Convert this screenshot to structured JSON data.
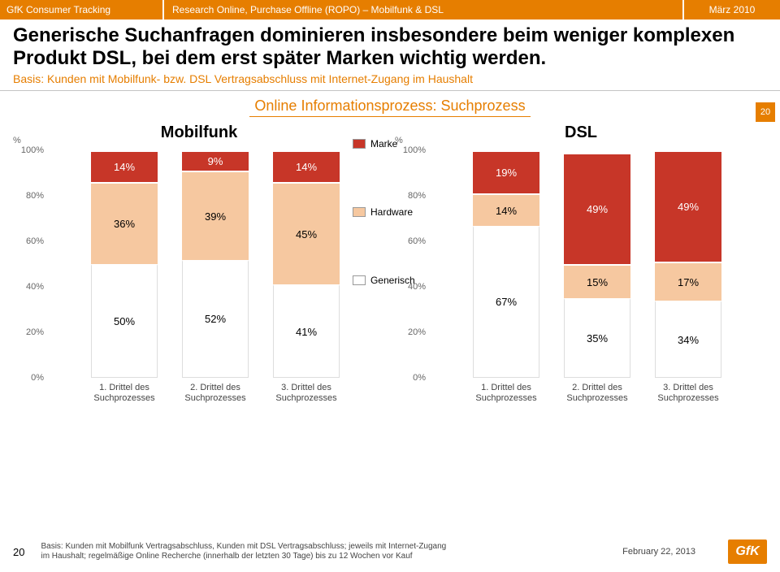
{
  "header": {
    "left": "GfK Consumer Tracking",
    "mid": "Research Online, Purchase Offline (ROPO) – Mobilfunk & DSL",
    "right": "März 2010"
  },
  "headline": "Generische Suchanfragen dominieren insbesondere beim weniger komplexen Produkt DSL, bei dem erst später Marken wichtig werden.",
  "subhead": "Basis: Kunden mit Mobilfunk- bzw. DSL Vertragsabschluss mit Internet-Zugang im Haushalt",
  "section_title": "Online Informationsprozess: Suchprozess",
  "pagenum_top": "20",
  "legend": {
    "items": [
      {
        "label": "Marke",
        "color": "#c73628"
      },
      {
        "label": "Hardware",
        "color": "#f6c8a0"
      },
      {
        "label": "Generisch",
        "color": "#ffffff"
      }
    ]
  },
  "colors": {
    "marke": "#c73628",
    "hardware": "#f6c8a0",
    "generisch": "#ffffff",
    "bar_border": "#ffffff",
    "text_on_dark": "#ffffff",
    "text_on_light": "#000000"
  },
  "charts": {
    "mobilfunk": {
      "title": "Mobilfunk",
      "ylabel": "%",
      "yticks": [
        "0%",
        "20%",
        "40%",
        "60%",
        "80%",
        "100%"
      ],
      "categories": [
        "1. Drittel des Suchprozesses",
        "2. Drittel des Suchprozesses",
        "3. Drittel des Suchprozesses"
      ],
      "series": [
        {
          "name": "Generisch",
          "values": [
            50,
            52,
            41
          ]
        },
        {
          "name": "Hardware",
          "values": [
            36,
            39,
            45
          ]
        },
        {
          "name": "Marke",
          "values": [
            14,
            9,
            14
          ]
        }
      ]
    },
    "dsl": {
      "title": "DSL",
      "ylabel": "%",
      "yticks": [
        "0%",
        "20%",
        "40%",
        "60%",
        "80%",
        "100%"
      ],
      "categories": [
        "1. Drittel des Suchprozesses",
        "2. Drittel des Suchprozesses",
        "3. Drittel des Suchprozesses"
      ],
      "series": [
        {
          "name": "Generisch",
          "values": [
            67,
            35,
            34
          ]
        },
        {
          "name": "Hardware",
          "values": [
            14,
            15,
            17
          ]
        },
        {
          "name": "Marke",
          "values": [
            19,
            49,
            49
          ]
        }
      ]
    }
  },
  "footer": {
    "num": "20",
    "text": "Basis: Kunden mit Mobilfunk Vertragsabschluss, Kunden mit DSL Vertragsabschluss; jeweils mit Internet-Zugang im Haushalt; regelmäßige Online Recherche (innerhalb der letzten 30 Tage) bis zu 12 Wochen vor Kauf",
    "date": "February 22, 2013",
    "logo": "GfK"
  }
}
